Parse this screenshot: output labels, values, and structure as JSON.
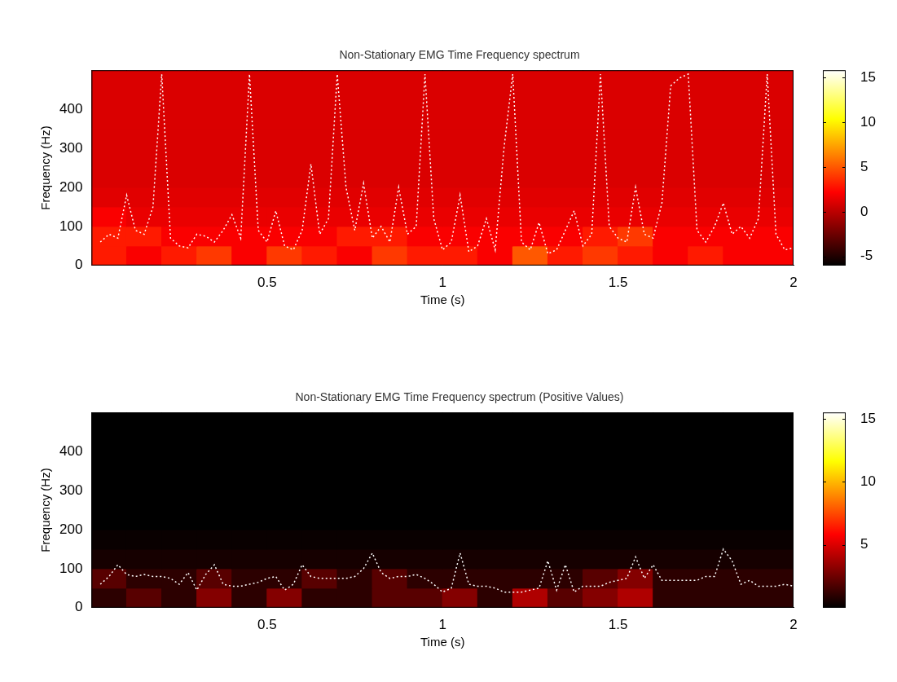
{
  "chart_data": [
    {
      "type": "heatmap",
      "title": "Non-Stationary EMG Time Frequency spectrum",
      "x_label": "Time (s)",
      "y_label": "Frequency (Hz)",
      "xlim": [
        0,
        2
      ],
      "xticks": [
        0.5,
        1,
        1.5,
        2
      ],
      "ylim": [
        0,
        500
      ],
      "yticks": [
        0,
        100,
        200,
        300,
        400
      ],
      "grid": false,
      "cell_x_edges": [
        0,
        0.1,
        0.2,
        0.3,
        0.4,
        0.5,
        0.6,
        0.7,
        0.8,
        0.9,
        1,
        1.1,
        1.2,
        1.3,
        1.4,
        1.5,
        1.6,
        1.7,
        1.8,
        1.9,
        2
      ],
      "cell_y_edges": [
        0,
        50,
        100,
        150,
        200,
        250,
        300,
        350,
        400,
        450,
        500
      ],
      "cells": [
        [
          3,
          2,
          3,
          4,
          2,
          4,
          3,
          2,
          4,
          3,
          3,
          2,
          5,
          3,
          4,
          3,
          2,
          3,
          2,
          2
        ],
        [
          3,
          3,
          2,
          2,
          2,
          2,
          2,
          3,
          3,
          2,
          2,
          2,
          2,
          2,
          3,
          4,
          2,
          2,
          2,
          2
        ],
        [
          2,
          1.5,
          1.5,
          1.5,
          1.5,
          1.5,
          1.5,
          1.5,
          1.5,
          1.5,
          1.5,
          1.5,
          1.5,
          1.5,
          1.5,
          1.5,
          1.5,
          1.5,
          1.5,
          1.5
        ],
        [
          1.2,
          1.2,
          1.2,
          1.2,
          1.2,
          1.2,
          1.2,
          1.2,
          1.2,
          1.2,
          1.2,
          1.2,
          1.2,
          1.2,
          1.2,
          1.2,
          1.2,
          1.2,
          1.2,
          1.2
        ],
        [
          1,
          1,
          1,
          1,
          1,
          1,
          1,
          1,
          1,
          1,
          1,
          1,
          1,
          1,
          1,
          1,
          1,
          1,
          1,
          1
        ],
        [
          1,
          1,
          1,
          1,
          1,
          1,
          1,
          1,
          1,
          1,
          1,
          1,
          1,
          1,
          1,
          1,
          1,
          1,
          1,
          1
        ],
        [
          1,
          1,
          1,
          1,
          1,
          1,
          1,
          1,
          1,
          1,
          1,
          1,
          1,
          1,
          1,
          1,
          1,
          1,
          1,
          1
        ],
        [
          1,
          1,
          1,
          1,
          1,
          1,
          1,
          1,
          1,
          1,
          1,
          1,
          1,
          1,
          1,
          1,
          1,
          1,
          1,
          1
        ],
        [
          1,
          1,
          1,
          1,
          1,
          1,
          1,
          1,
          1,
          1,
          1,
          1,
          1,
          1,
          1,
          1,
          1,
          1,
          1,
          1
        ],
        [
          1,
          1,
          1,
          1,
          1,
          1,
          1,
          1,
          1,
          1,
          1,
          1,
          1,
          1,
          1,
          1,
          1,
          1,
          1,
          1
        ]
      ],
      "colorbar_range": [
        -6,
        15.8
      ],
      "colorbar_ticks": [
        -5,
        0,
        5,
        10,
        15
      ],
      "x": [
        0.025,
        0.05,
        0.075,
        0.1,
        0.125,
        0.15,
        0.175,
        0.2,
        0.225,
        0.25,
        0.275,
        0.3,
        0.325,
        0.35,
        0.375,
        0.4,
        0.425,
        0.45,
        0.475,
        0.5,
        0.525,
        0.55,
        0.575,
        0.6,
        0.625,
        0.65,
        0.675,
        0.7,
        0.725,
        0.75,
        0.775,
        0.8,
        0.825,
        0.85,
        0.875,
        0.9,
        0.925,
        0.95,
        0.975,
        1,
        1.025,
        1.05,
        1.075,
        1.1,
        1.125,
        1.15,
        1.175,
        1.2,
        1.225,
        1.25,
        1.275,
        1.3,
        1.325,
        1.35,
        1.375,
        1.4,
        1.425,
        1.45,
        1.475,
        1.5,
        1.525,
        1.55,
        1.575,
        1.6,
        1.625,
        1.65,
        1.675,
        1.7,
        1.725,
        1.75,
        1.775,
        1.8,
        1.825,
        1.85,
        1.875,
        1.9,
        1.925,
        1.95,
        1.975,
        2
      ],
      "series": [
        {
          "color": "#ffffff",
          "line_style": "dotted",
          "values": [
            60,
            80,
            70,
            180,
            90,
            80,
            150,
            490,
            70,
            50,
            45,
            80,
            75,
            60,
            90,
            130,
            70,
            490,
            90,
            60,
            140,
            50,
            40,
            90,
            260,
            80,
            120,
            490,
            200,
            90,
            210,
            70,
            100,
            60,
            200,
            80,
            100,
            490,
            120,
            40,
            60,
            180,
            35,
            50,
            120,
            40,
            300,
            490,
            60,
            40,
            110,
            30,
            40,
            90,
            140,
            50,
            80,
            490,
            100,
            70,
            60,
            200,
            80,
            70,
            160,
            460,
            480,
            490,
            90,
            60,
            100,
            160,
            80,
            100,
            70,
            120,
            490,
            80,
            40,
            45
          ]
        }
      ]
    },
    {
      "type": "heatmap",
      "title": "Non-Stationary EMG Time Frequency spectrum (Positive Values)",
      "x_label": "Time (s)",
      "y_label": "Frequency (Hz)",
      "xlim": [
        0,
        2
      ],
      "xticks": [
        0.5,
        1,
        1.5,
        2
      ],
      "ylim": [
        0,
        500
      ],
      "yticks": [
        0,
        100,
        200,
        300,
        400
      ],
      "grid": false,
      "cell_x_edges": [
        0,
        0.1,
        0.2,
        0.3,
        0.4,
        0.5,
        0.6,
        0.7,
        0.8,
        0.9,
        1,
        1.1,
        1.2,
        1.3,
        1.4,
        1.5,
        1.6,
        1.7,
        1.8,
        1.9,
        2
      ],
      "cell_y_edges": [
        0,
        50,
        100,
        150,
        200,
        250,
        300,
        350,
        400,
        450,
        500
      ],
      "cells": [
        [
          1,
          2,
          1,
          3,
          1,
          3,
          1,
          1,
          2,
          2,
          3,
          1,
          4,
          2,
          3,
          4,
          1,
          1,
          1,
          1
        ],
        [
          2,
          1,
          1,
          2,
          1,
          1,
          2,
          1,
          2,
          1,
          1,
          1,
          1,
          1,
          2,
          3,
          1,
          1,
          1,
          1
        ],
        [
          0.5,
          0.5,
          0.5,
          0.5,
          0.5,
          0.5,
          0.5,
          0.5,
          0.5,
          0.5,
          0.5,
          0.5,
          0.5,
          0.5,
          0.5,
          0.5,
          0.5,
          0.5,
          0.5,
          0.5
        ],
        [
          0.2,
          0.2,
          0.2,
          0.2,
          0.2,
          0.2,
          0.2,
          0.2,
          0.2,
          0.2,
          0.2,
          0.2,
          0.2,
          0.2,
          0.2,
          0.2,
          0.2,
          0.2,
          0.2,
          0.2
        ],
        [
          0,
          0,
          0,
          0,
          0,
          0,
          0,
          0,
          0,
          0,
          0,
          0,
          0,
          0,
          0,
          0,
          0,
          0,
          0,
          0
        ],
        [
          0,
          0,
          0,
          0,
          0,
          0,
          0,
          0,
          0,
          0,
          0,
          0,
          0,
          0,
          0,
          0,
          0,
          0,
          0,
          0
        ],
        [
          0,
          0,
          0,
          0,
          0,
          0,
          0,
          0,
          0,
          0,
          0,
          0,
          0,
          0,
          0,
          0,
          0,
          0,
          0,
          0
        ],
        [
          0,
          0,
          0,
          0,
          0,
          0,
          0,
          0,
          0,
          0,
          0,
          0,
          0,
          0,
          0,
          0,
          0,
          0,
          0,
          0
        ],
        [
          0,
          0,
          0,
          0,
          0,
          0,
          0,
          0,
          0,
          0,
          0,
          0,
          0,
          0,
          0,
          0,
          0,
          0,
          0,
          0
        ],
        [
          0,
          0,
          0,
          0,
          0,
          0,
          0,
          0,
          0,
          0,
          0,
          0,
          0,
          0,
          0,
          0,
          0,
          0,
          0,
          0
        ]
      ],
      "colorbar_range": [
        0,
        15.5
      ],
      "colorbar_ticks": [
        5,
        10,
        15
      ],
      "x": [
        0.025,
        0.05,
        0.075,
        0.1,
        0.125,
        0.15,
        0.175,
        0.2,
        0.225,
        0.25,
        0.275,
        0.3,
        0.325,
        0.35,
        0.375,
        0.4,
        0.425,
        0.45,
        0.475,
        0.5,
        0.525,
        0.55,
        0.575,
        0.6,
        0.625,
        0.65,
        0.675,
        0.7,
        0.725,
        0.75,
        0.775,
        0.8,
        0.825,
        0.85,
        0.875,
        0.9,
        0.925,
        0.95,
        0.975,
        1,
        1.025,
        1.05,
        1.075,
        1.1,
        1.125,
        1.15,
        1.175,
        1.2,
        1.225,
        1.25,
        1.275,
        1.3,
        1.325,
        1.35,
        1.375,
        1.4,
        1.425,
        1.45,
        1.475,
        1.5,
        1.525,
        1.55,
        1.575,
        1.6,
        1.625,
        1.65,
        1.675,
        1.7,
        1.725,
        1.75,
        1.775,
        1.8,
        1.825,
        1.85,
        1.875,
        1.9,
        1.925,
        1.95,
        1.975,
        2
      ],
      "series": [
        {
          "color": "#ffffff",
          "line_style": "dotted",
          "values": [
            60,
            80,
            110,
            85,
            80,
            85,
            80,
            80,
            75,
            60,
            90,
            45,
            85,
            110,
            60,
            55,
            55,
            60,
            65,
            75,
            80,
            45,
            60,
            110,
            80,
            75,
            75,
            75,
            75,
            80,
            100,
            140,
            90,
            75,
            80,
            80,
            85,
            75,
            60,
            40,
            50,
            140,
            60,
            55,
            55,
            50,
            40,
            40,
            40,
            45,
            50,
            120,
            45,
            110,
            40,
            55,
            55,
            55,
            65,
            70,
            75,
            130,
            75,
            110,
            70,
            70,
            70,
            70,
            70,
            80,
            80,
            150,
            120,
            60,
            70,
            55,
            55,
            55,
            60,
            55
          ]
        }
      ]
    }
  ]
}
